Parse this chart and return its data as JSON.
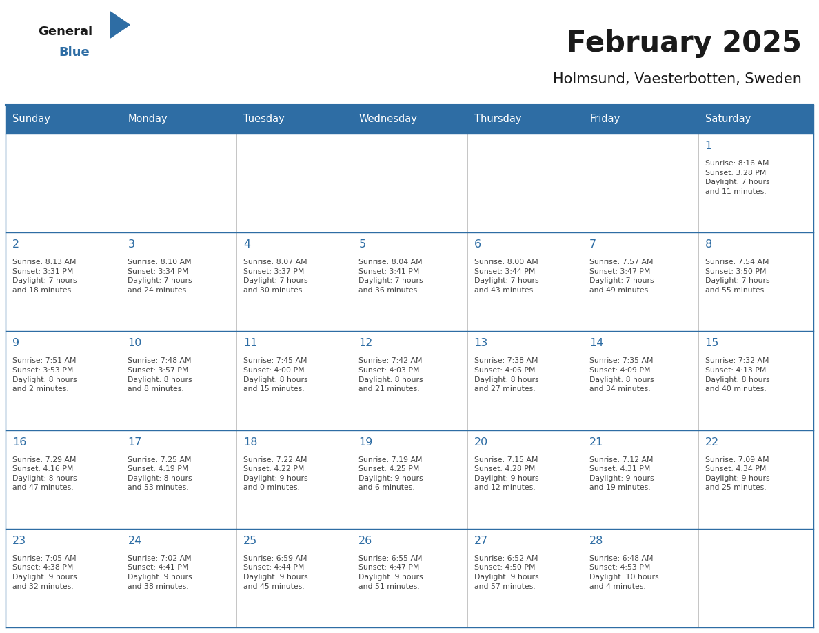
{
  "title": "February 2025",
  "subtitle": "Holmsund, Vaesterbotten, Sweden",
  "header_bg": "#2E6DA4",
  "header_text_color": "#FFFFFF",
  "cell_bg_light": "#F0F0F0",
  "cell_bg_white": "#FFFFFF",
  "day_number_color": "#2E6DA4",
  "info_text_color": "#444444",
  "border_color": "#2E6DA4",
  "grid_color": "#AAAAAA",
  "days_of_week": [
    "Sunday",
    "Monday",
    "Tuesday",
    "Wednesday",
    "Thursday",
    "Friday",
    "Saturday"
  ],
  "weeks": [
    [
      {
        "day": null,
        "info": ""
      },
      {
        "day": null,
        "info": ""
      },
      {
        "day": null,
        "info": ""
      },
      {
        "day": null,
        "info": ""
      },
      {
        "day": null,
        "info": ""
      },
      {
        "day": null,
        "info": ""
      },
      {
        "day": 1,
        "info": "Sunrise: 8:16 AM\nSunset: 3:28 PM\nDaylight: 7 hours\nand 11 minutes."
      }
    ],
    [
      {
        "day": 2,
        "info": "Sunrise: 8:13 AM\nSunset: 3:31 PM\nDaylight: 7 hours\nand 18 minutes."
      },
      {
        "day": 3,
        "info": "Sunrise: 8:10 AM\nSunset: 3:34 PM\nDaylight: 7 hours\nand 24 minutes."
      },
      {
        "day": 4,
        "info": "Sunrise: 8:07 AM\nSunset: 3:37 PM\nDaylight: 7 hours\nand 30 minutes."
      },
      {
        "day": 5,
        "info": "Sunrise: 8:04 AM\nSunset: 3:41 PM\nDaylight: 7 hours\nand 36 minutes."
      },
      {
        "day": 6,
        "info": "Sunrise: 8:00 AM\nSunset: 3:44 PM\nDaylight: 7 hours\nand 43 minutes."
      },
      {
        "day": 7,
        "info": "Sunrise: 7:57 AM\nSunset: 3:47 PM\nDaylight: 7 hours\nand 49 minutes."
      },
      {
        "day": 8,
        "info": "Sunrise: 7:54 AM\nSunset: 3:50 PM\nDaylight: 7 hours\nand 55 minutes."
      }
    ],
    [
      {
        "day": 9,
        "info": "Sunrise: 7:51 AM\nSunset: 3:53 PM\nDaylight: 8 hours\nand 2 minutes."
      },
      {
        "day": 10,
        "info": "Sunrise: 7:48 AM\nSunset: 3:57 PM\nDaylight: 8 hours\nand 8 minutes."
      },
      {
        "day": 11,
        "info": "Sunrise: 7:45 AM\nSunset: 4:00 PM\nDaylight: 8 hours\nand 15 minutes."
      },
      {
        "day": 12,
        "info": "Sunrise: 7:42 AM\nSunset: 4:03 PM\nDaylight: 8 hours\nand 21 minutes."
      },
      {
        "day": 13,
        "info": "Sunrise: 7:38 AM\nSunset: 4:06 PM\nDaylight: 8 hours\nand 27 minutes."
      },
      {
        "day": 14,
        "info": "Sunrise: 7:35 AM\nSunset: 4:09 PM\nDaylight: 8 hours\nand 34 minutes."
      },
      {
        "day": 15,
        "info": "Sunrise: 7:32 AM\nSunset: 4:13 PM\nDaylight: 8 hours\nand 40 minutes."
      }
    ],
    [
      {
        "day": 16,
        "info": "Sunrise: 7:29 AM\nSunset: 4:16 PM\nDaylight: 8 hours\nand 47 minutes."
      },
      {
        "day": 17,
        "info": "Sunrise: 7:25 AM\nSunset: 4:19 PM\nDaylight: 8 hours\nand 53 minutes."
      },
      {
        "day": 18,
        "info": "Sunrise: 7:22 AM\nSunset: 4:22 PM\nDaylight: 9 hours\nand 0 minutes."
      },
      {
        "day": 19,
        "info": "Sunrise: 7:19 AM\nSunset: 4:25 PM\nDaylight: 9 hours\nand 6 minutes."
      },
      {
        "day": 20,
        "info": "Sunrise: 7:15 AM\nSunset: 4:28 PM\nDaylight: 9 hours\nand 12 minutes."
      },
      {
        "day": 21,
        "info": "Sunrise: 7:12 AM\nSunset: 4:31 PM\nDaylight: 9 hours\nand 19 minutes."
      },
      {
        "day": 22,
        "info": "Sunrise: 7:09 AM\nSunset: 4:34 PM\nDaylight: 9 hours\nand 25 minutes."
      }
    ],
    [
      {
        "day": 23,
        "info": "Sunrise: 7:05 AM\nSunset: 4:38 PM\nDaylight: 9 hours\nand 32 minutes."
      },
      {
        "day": 24,
        "info": "Sunrise: 7:02 AM\nSunset: 4:41 PM\nDaylight: 9 hours\nand 38 minutes."
      },
      {
        "day": 25,
        "info": "Sunrise: 6:59 AM\nSunset: 4:44 PM\nDaylight: 9 hours\nand 45 minutes."
      },
      {
        "day": 26,
        "info": "Sunrise: 6:55 AM\nSunset: 4:47 PM\nDaylight: 9 hours\nand 51 minutes."
      },
      {
        "day": 27,
        "info": "Sunrise: 6:52 AM\nSunset: 4:50 PM\nDaylight: 9 hours\nand 57 minutes."
      },
      {
        "day": 28,
        "info": "Sunrise: 6:48 AM\nSunset: 4:53 PM\nDaylight: 10 hours\nand 4 minutes."
      },
      {
        "day": null,
        "info": ""
      }
    ]
  ]
}
